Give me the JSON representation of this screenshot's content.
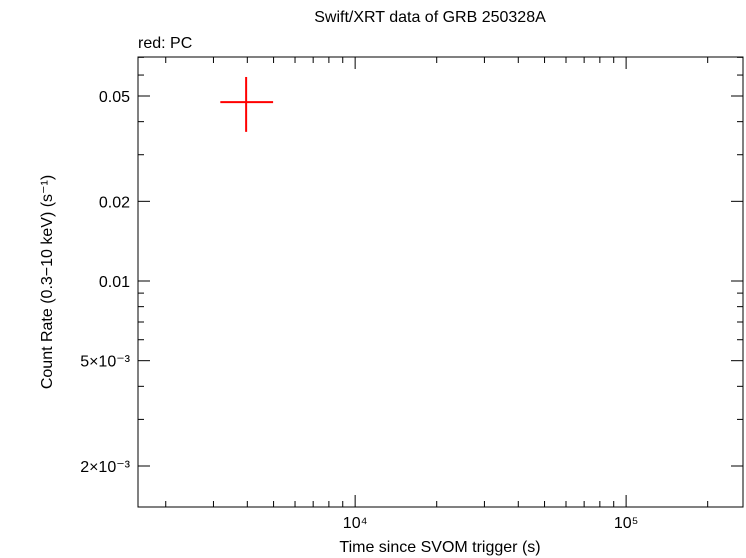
{
  "chart_data": {
    "type": "scatter",
    "title": "Swift/XRT data of GRB 250328A",
    "annotation": "red: PC",
    "x_label": "Time since SVOM trigger (s)",
    "y_label": "Count Rate (0.3−10 keV) (s⁻¹)",
    "x_log": true,
    "y_log": true,
    "xlim": [
      1580,
      270000
    ],
    "ylim": [
      0.0014,
      0.0702
    ],
    "xticks": [
      {
        "value": 10000,
        "label": "10⁴"
      },
      {
        "value": 100000,
        "label": "10⁵"
      }
    ],
    "x_minor_ticks": [
      2000,
      3000,
      4000,
      5000,
      6000,
      7000,
      8000,
      9000,
      20000,
      30000,
      40000,
      50000,
      60000,
      70000,
      80000,
      90000,
      200000
    ],
    "yticks": [
      {
        "value": 0.002,
        "label": "2×10⁻³"
      },
      {
        "value": 0.005,
        "label": "5×10⁻³"
      },
      0.01,
      0.02,
      0.05
    ],
    "y_minor_ticks": [
      0.003,
      0.004,
      0.006,
      0.007,
      0.008,
      0.009,
      0.03,
      0.04,
      0.06,
      0.07
    ],
    "series": [
      {
        "name": "PC",
        "color": "#ff0000",
        "x": [
          3960
        ],
        "x_low": [
          3180
        ],
        "x_high": [
          4980
        ],
        "values": [
          0.0474
        ],
        "y_low": [
          0.0366
        ],
        "y_high": [
          0.059
        ]
      }
    ]
  }
}
